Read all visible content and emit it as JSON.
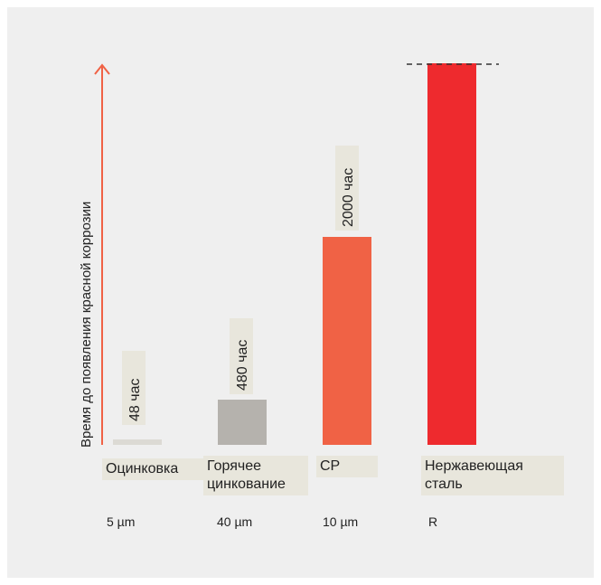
{
  "chart_data": {
    "type": "bar",
    "ylabel": "Время до появления красной коррозии",
    "categories": [
      "Оцинковка",
      "Горячее цинкование",
      "CP",
      "Нержавеющая сталь"
    ],
    "category_lines": [
      [
        "Оцинковка"
      ],
      [
        "Горячее",
        "цинкование"
      ],
      [
        "CP"
      ],
      [
        "Нержавеющая",
        "сталь"
      ]
    ],
    "thickness": [
      "5 µm",
      "40 µm",
      "10 µm",
      "R"
    ],
    "values": [
      48,
      480,
      2000,
      null
    ],
    "value_labels": [
      "48 час",
      "480 час",
      "2000 час",
      ""
    ],
    "colors": [
      "#dcdad4",
      "#b5b2ad",
      "#f06245",
      "#ee2a2e"
    ],
    "axis_color": "#f06245",
    "bar_label_bg": "#e8e6dc"
  }
}
